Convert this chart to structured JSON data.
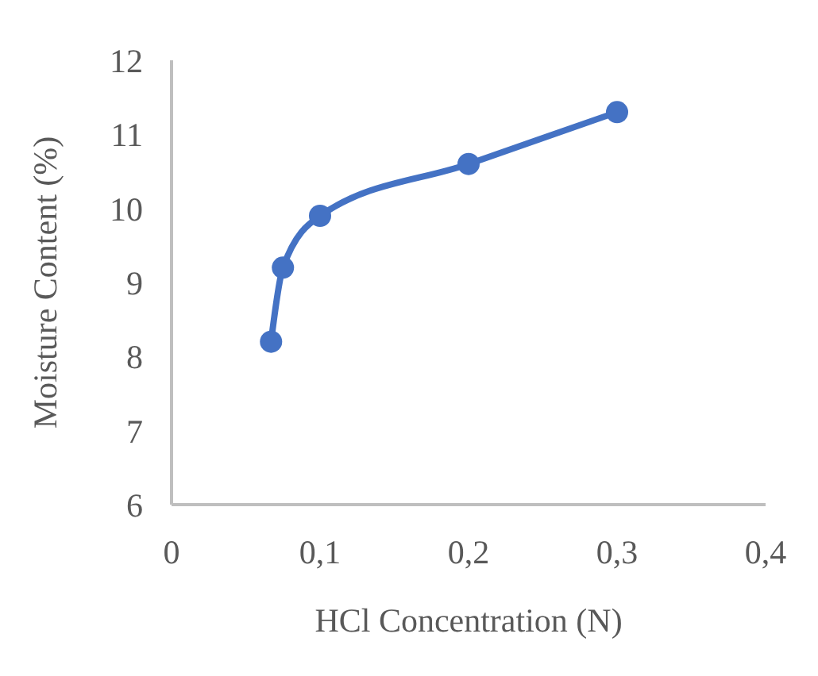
{
  "chart_data": {
    "type": "line",
    "xlabel": "HCl Concentration (N)",
    "ylabel": "Moisture Content (%)",
    "x": [
      0.067,
      0.075,
      0.1,
      0.2,
      0.3
    ],
    "series": [
      {
        "color": "#4472c4",
        "values": [
          8.2,
          9.2,
          9.9,
          10.6,
          11.3
        ]
      }
    ],
    "xlim": [
      0,
      0.4
    ],
    "xticks": [
      0,
      {
        "value": 0.1,
        "label": "0,1"
      },
      {
        "value": 0.2,
        "label": "0,2"
      },
      {
        "value": 0.3,
        "label": "0,3"
      },
      {
        "value": 0.4,
        "label": "0,4"
      }
    ],
    "ylim": [
      6,
      12
    ],
    "yticks": [
      6,
      7,
      8,
      9,
      10,
      11,
      12
    ],
    "grid": false,
    "legend": false,
    "marker": "circle",
    "line_style": "solid"
  }
}
